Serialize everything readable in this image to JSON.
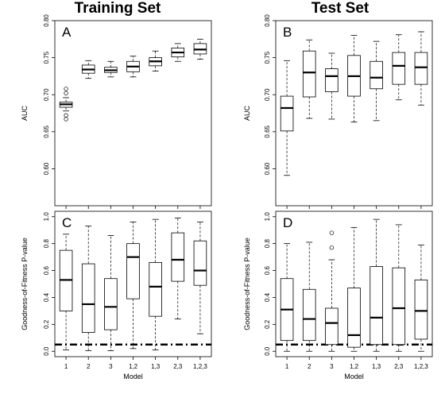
{
  "figure": {
    "column_titles": [
      "Training Set",
      "Test Set"
    ]
  },
  "chart_data": [
    {
      "type": "box",
      "panel": "A",
      "column": "Training Set",
      "xlabel": "Model",
      "ylabel": "AUC",
      "categories": [
        "1",
        "2",
        "3",
        "1,2",
        "1,3",
        "2,3",
        "1,2,3"
      ],
      "ylim": [
        0.55,
        0.8
      ],
      "yticks": [
        "0.60",
        "0.65",
        "0.70",
        "0.75",
        "0.80"
      ],
      "reference_line": null,
      "boxes": [
        {
          "min": 0.678,
          "q1": 0.683,
          "median": 0.687,
          "q3": 0.69,
          "max": 0.696,
          "outliers": [
            0.702,
            0.708,
            0.672,
            0.667
          ]
        },
        {
          "min": 0.722,
          "q1": 0.729,
          "median": 0.734,
          "q3": 0.74,
          "max": 0.746,
          "outliers": []
        },
        {
          "min": 0.724,
          "q1": 0.73,
          "median": 0.733,
          "q3": 0.737,
          "max": 0.745,
          "outliers": []
        },
        {
          "min": 0.724,
          "q1": 0.731,
          "median": 0.738,
          "q3": 0.745,
          "max": 0.752,
          "outliers": []
        },
        {
          "min": 0.732,
          "q1": 0.739,
          "median": 0.745,
          "q3": 0.75,
          "max": 0.759,
          "outliers": []
        },
        {
          "min": 0.745,
          "q1": 0.751,
          "median": 0.757,
          "q3": 0.763,
          "max": 0.769,
          "outliers": []
        },
        {
          "min": 0.748,
          "q1": 0.755,
          "median": 0.761,
          "q3": 0.769,
          "max": 0.775,
          "outliers": []
        }
      ]
    },
    {
      "type": "box",
      "panel": "B",
      "column": "Test Set",
      "xlabel": "Model",
      "ylabel": "AUC",
      "categories": [
        "1",
        "2",
        "3",
        "1,2",
        "1,3",
        "2,3",
        "1,2,3"
      ],
      "ylim": [
        0.55,
        0.8
      ],
      "yticks": [
        "0.60",
        "0.65",
        "0.70",
        "0.75",
        "0.80"
      ],
      "reference_line": null,
      "boxes": [
        {
          "min": 0.591,
          "q1": 0.651,
          "median": 0.682,
          "q3": 0.698,
          "max": 0.746,
          "outliers": []
        },
        {
          "min": 0.668,
          "q1": 0.697,
          "median": 0.73,
          "q3": 0.759,
          "max": 0.774,
          "outliers": []
        },
        {
          "min": 0.667,
          "q1": 0.704,
          "median": 0.725,
          "q3": 0.735,
          "max": 0.756,
          "outliers": []
        },
        {
          "min": 0.663,
          "q1": 0.698,
          "median": 0.725,
          "q3": 0.753,
          "max": 0.78,
          "outliers": []
        },
        {
          "min": 0.665,
          "q1": 0.708,
          "median": 0.723,
          "q3": 0.745,
          "max": 0.772,
          "outliers": []
        },
        {
          "min": 0.693,
          "q1": 0.714,
          "median": 0.739,
          "q3": 0.757,
          "max": 0.781,
          "outliers": []
        },
        {
          "min": 0.686,
          "q1": 0.714,
          "median": 0.737,
          "q3": 0.757,
          "max": 0.785,
          "outliers": []
        }
      ]
    },
    {
      "type": "box",
      "panel": "C",
      "column": "Training Set",
      "xlabel": "Model",
      "ylabel": "Goodness-of-Fitness P-value",
      "categories": [
        "1",
        "2",
        "3",
        "1,2",
        "1,3",
        "2,3",
        "1,2,3"
      ],
      "ylim": [
        -0.04,
        1.04
      ],
      "yticks": [
        "0.0",
        "0.2",
        "0.4",
        "0.6",
        "0.8",
        "1.0"
      ],
      "reference_line": 0.05,
      "boxes": [
        {
          "min": 0.01,
          "q1": 0.3,
          "median": 0.53,
          "q3": 0.75,
          "max": 0.87,
          "outliers": []
        },
        {
          "min": 0.005,
          "q1": 0.14,
          "median": 0.35,
          "q3": 0.65,
          "max": 0.93,
          "outliers": []
        },
        {
          "min": 0.005,
          "q1": 0.16,
          "median": 0.33,
          "q3": 0.54,
          "max": 0.86,
          "outliers": []
        },
        {
          "min": 0.02,
          "q1": 0.39,
          "median": 0.7,
          "q3": 0.8,
          "max": 0.96,
          "outliers": []
        },
        {
          "min": 0.01,
          "q1": 0.26,
          "median": 0.48,
          "q3": 0.66,
          "max": 0.98,
          "outliers": []
        },
        {
          "min": 0.24,
          "q1": 0.52,
          "median": 0.68,
          "q3": 0.88,
          "max": 0.99,
          "outliers": []
        },
        {
          "min": 0.13,
          "q1": 0.49,
          "median": 0.6,
          "q3": 0.82,
          "max": 0.96,
          "outliers": []
        }
      ]
    },
    {
      "type": "box",
      "panel": "D",
      "column": "Test Set",
      "xlabel": "Model",
      "ylabel": "Goodness-of-Fitness P-value",
      "categories": [
        "1",
        "2",
        "3",
        "1,2",
        "1,3",
        "2,3",
        "1,2,3"
      ],
      "ylim": [
        -0.04,
        1.04
      ],
      "yticks": [
        "0.0",
        "0.2",
        "0.4",
        "0.6",
        "0.8",
        "1.0"
      ],
      "reference_line": 0.05,
      "boxes": [
        {
          "min": 0.0,
          "q1": 0.08,
          "median": 0.31,
          "q3": 0.54,
          "max": 0.8,
          "outliers": []
        },
        {
          "min": 0.0,
          "q1": 0.08,
          "median": 0.24,
          "q3": 0.46,
          "max": 0.81,
          "outliers": []
        },
        {
          "min": 0.0,
          "q1": 0.05,
          "median": 0.21,
          "q3": 0.32,
          "max": 0.68,
          "outliers": [
            0.88,
            0.77
          ]
        },
        {
          "min": 0.0,
          "q1": 0.03,
          "median": 0.12,
          "q3": 0.47,
          "max": 0.92,
          "outliers": []
        },
        {
          "min": 0.0,
          "q1": 0.05,
          "median": 0.25,
          "q3": 0.63,
          "max": 0.98,
          "outliers": []
        },
        {
          "min": 0.0,
          "q1": 0.05,
          "median": 0.32,
          "q3": 0.62,
          "max": 0.94,
          "outliers": []
        },
        {
          "min": 0.0,
          "q1": 0.09,
          "median": 0.3,
          "q3": 0.53,
          "max": 0.79,
          "outliers": []
        }
      ]
    }
  ]
}
